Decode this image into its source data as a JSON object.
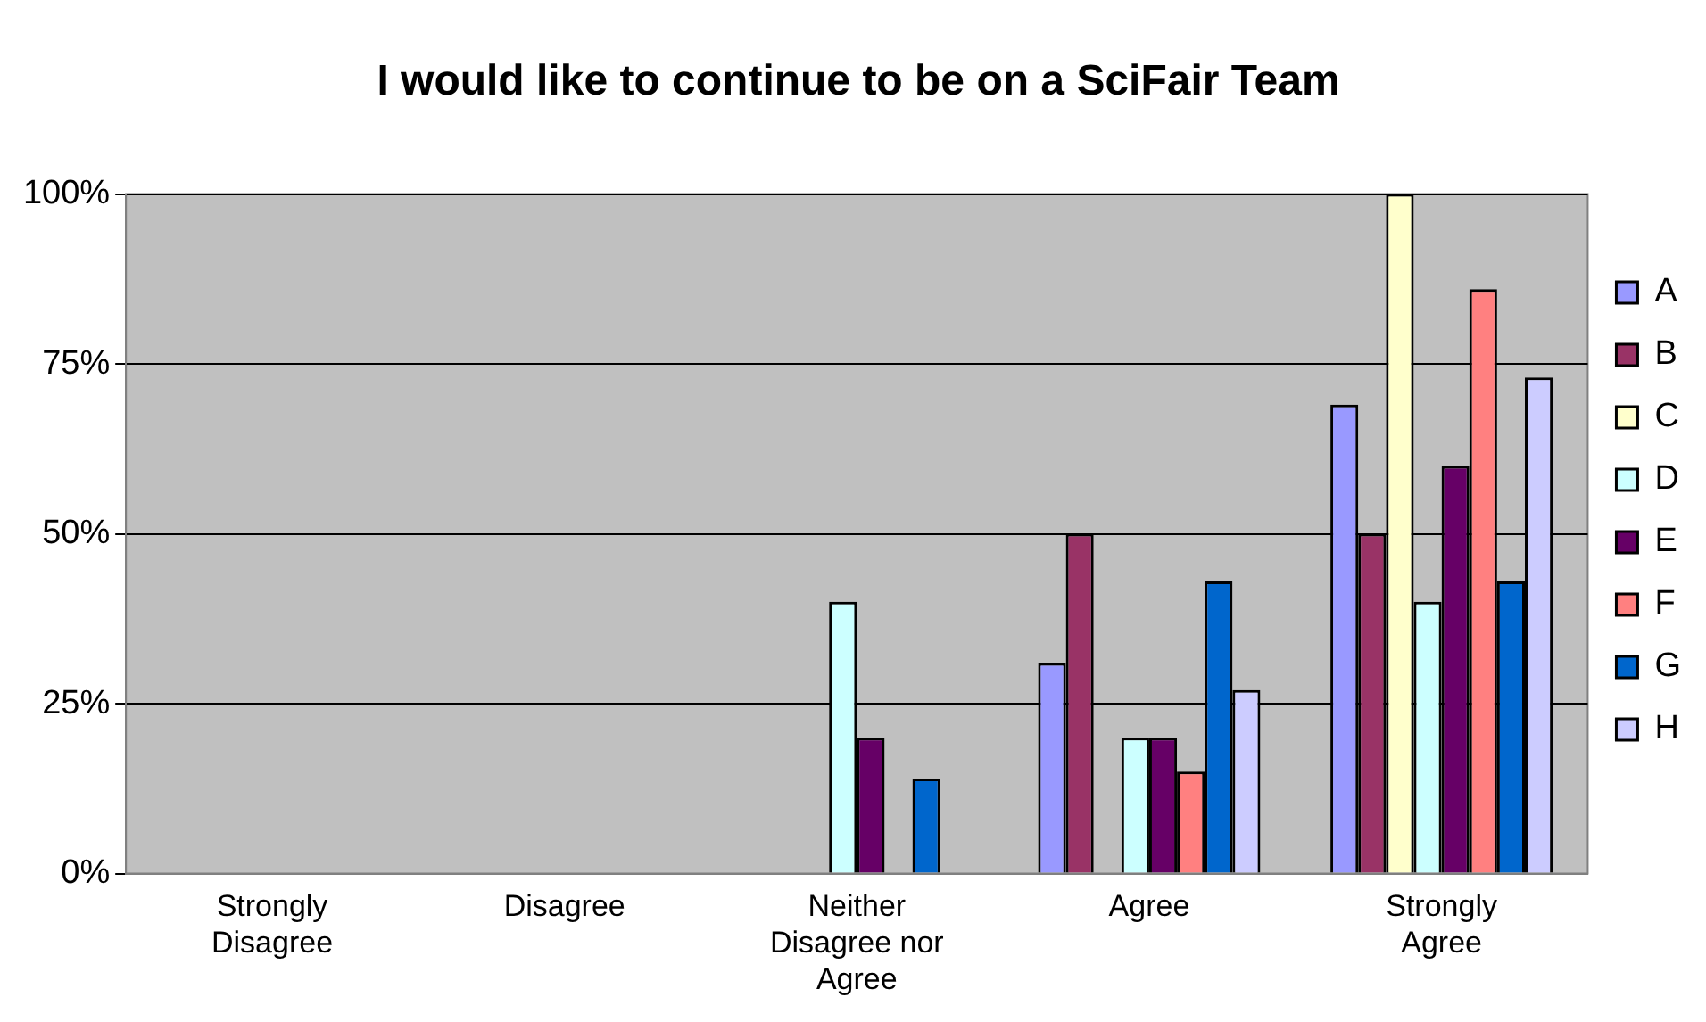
{
  "chart_data": {
    "type": "bar",
    "title": "I would like to continue to be on a SciFair Team",
    "categories": [
      "Strongly Disagree",
      "Disagree",
      "Neither Disagree nor Agree",
      "Agree",
      "Strongly Agree"
    ],
    "series": [
      {
        "name": "A",
        "color": "#9999ff",
        "values": [
          0,
          0,
          0,
          31,
          69
        ]
      },
      {
        "name": "B",
        "color": "#993366",
        "values": [
          0,
          0,
          0,
          50,
          50
        ]
      },
      {
        "name": "C",
        "color": "#ffffcc",
        "values": [
          0,
          0,
          0,
          0,
          100
        ]
      },
      {
        "name": "D",
        "color": "#ccffff",
        "values": [
          0,
          0,
          40,
          20,
          40
        ]
      },
      {
        "name": "E",
        "color": "#660066",
        "values": [
          0,
          0,
          20,
          20,
          60
        ]
      },
      {
        "name": "F",
        "color": "#ff8080",
        "values": [
          0,
          0,
          0,
          15,
          86
        ]
      },
      {
        "name": "G",
        "color": "#0066cc",
        "values": [
          0,
          0,
          14,
          43,
          43
        ]
      },
      {
        "name": "H",
        "color": "#ccccff",
        "values": [
          0,
          0,
          0,
          27,
          73
        ]
      }
    ],
    "ylim": [
      0,
      100
    ],
    "yticks": [
      {
        "value": 0,
        "label": "0%"
      },
      {
        "value": 25,
        "label": "25%"
      },
      {
        "value": 50,
        "label": "50%"
      },
      {
        "value": 75,
        "label": "75%"
      },
      {
        "value": 100,
        "label": "100%"
      }
    ],
    "grid": "y",
    "legend": "right"
  }
}
